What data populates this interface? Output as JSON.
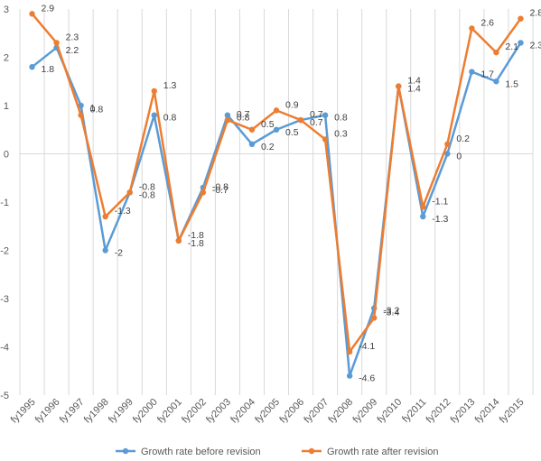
{
  "chart_data": {
    "type": "line",
    "title": "",
    "xlabel": "",
    "ylabel": "",
    "categories": [
      "fy1995",
      "fy1996",
      "fy1997",
      "fy1998",
      "fy1999",
      "fy2000",
      "fy2001",
      "fy2002",
      "fy2003",
      "fy2004",
      "fy2005",
      "fy2006",
      "fy2007",
      "fy2008",
      "fy2009",
      "fy2010",
      "fy2011",
      "fy2012",
      "fy2013",
      "fy2014",
      "fy2015"
    ],
    "ylim": [
      -5,
      3
    ],
    "yticks": [
      "-5",
      "-4",
      "-3",
      "-2",
      "-1",
      "0",
      "1",
      "2",
      "3"
    ],
    "grid": "vertical",
    "legend_position": "bottom",
    "series": [
      {
        "name": "Growth rate before revision",
        "color": "#5B9BD5",
        "values": [
          1.8,
          2.2,
          1,
          -2,
          -0.8,
          0.8,
          -1.8,
          -0.7,
          0.8,
          0.2,
          0.5,
          0.7,
          0.8,
          -4.6,
          -3.2,
          1.4,
          -1.3,
          0,
          1.7,
          1.5,
          2.3
        ],
        "labels": [
          "1.8",
          "2.2",
          "1",
          "-2",
          "-0.8",
          "0.8",
          "-1.8",
          "-0.7",
          "0.8",
          "0.2",
          "0.5",
          "0.7",
          "0.8",
          "-4.6",
          "-3.2",
          "1.4",
          "-1.3",
          "0",
          "1.7",
          "1.5",
          "2.3"
        ]
      },
      {
        "name": "Growth rate after revision",
        "color": "#ED7D31",
        "values": [
          2.9,
          2.3,
          0.8,
          -1.3,
          -0.8,
          1.3,
          -1.8,
          -0.8,
          0.7,
          0.5,
          0.9,
          0.7,
          0.3,
          -4.1,
          -3.4,
          1.4,
          -1.1,
          0.2,
          2.6,
          2.1,
          2.8
        ],
        "labels": [
          "2.9",
          "2.3",
          "0.8",
          "-1.3",
          "-0.8",
          "1.3",
          "-1.8",
          "-0.8",
          "0.7",
          "0.5",
          "0.9",
          "0.7",
          "0.3",
          "-4.1",
          "-3.4",
          "1.4",
          "-1.1",
          "0.2",
          "2.6",
          "2.1",
          "2.8"
        ]
      }
    ]
  }
}
